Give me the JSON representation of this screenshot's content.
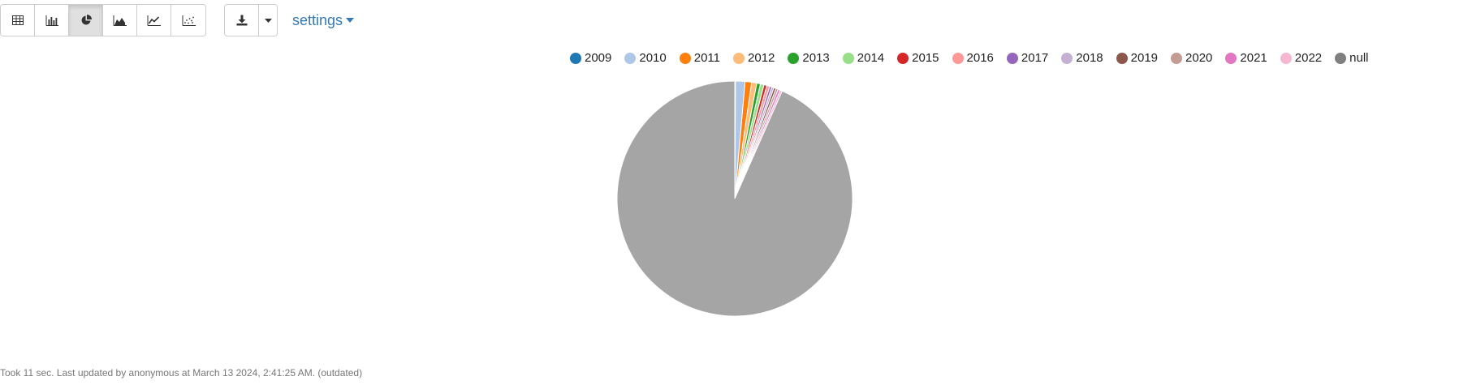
{
  "toolbar": {
    "view_buttons": [
      {
        "name": "table-view-button",
        "icon": "table-icon"
      },
      {
        "name": "bar-chart-button",
        "icon": "bar-chart-icon"
      },
      {
        "name": "pie-chart-button",
        "icon": "pie-chart-icon",
        "active": true
      },
      {
        "name": "area-chart-button",
        "icon": "area-chart-icon"
      },
      {
        "name": "line-chart-button",
        "icon": "line-chart-icon"
      },
      {
        "name": "scatter-chart-button",
        "icon": "scatter-chart-icon"
      }
    ],
    "export_icon": "download-icon",
    "settings_label": "settings"
  },
  "chart_data": {
    "type": "pie",
    "title": "",
    "legend_position": "top-right",
    "slices": [
      {
        "label": "2009",
        "value": 0.1,
        "color": "#1f77b4"
      },
      {
        "label": "2010",
        "value": 1.3,
        "color": "#aec7e8"
      },
      {
        "label": "2011",
        "value": 0.9,
        "color": "#ff7f0e"
      },
      {
        "label": "2012",
        "value": 0.7,
        "color": "#ffbb78"
      },
      {
        "label": "2013",
        "value": 0.5,
        "color": "#2ca02c"
      },
      {
        "label": "2014",
        "value": 0.5,
        "color": "#98df8a"
      },
      {
        "label": "2015",
        "value": 0.4,
        "color": "#d62728"
      },
      {
        "label": "2016",
        "value": 0.4,
        "color": "#ff9896"
      },
      {
        "label": "2017",
        "value": 0.3,
        "color": "#9467bd"
      },
      {
        "label": "2018",
        "value": 0.3,
        "color": "#c5b0d5"
      },
      {
        "label": "2019",
        "value": 0.3,
        "color": "#8c564b"
      },
      {
        "label": "2020",
        "value": 0.3,
        "color": "#c49c94"
      },
      {
        "label": "2021",
        "value": 0.3,
        "color": "#e377c2"
      },
      {
        "label": "2022",
        "value": 0.3,
        "color": "#f7b6d2"
      },
      {
        "label": "null",
        "value": 93.4,
        "color": "#a5a5a5"
      }
    ],
    "legend_colors": {
      "null": "#7f7f7f"
    }
  },
  "footer": {
    "status_text": "Took 11 sec. Last updated by anonymous at March 13 2024, 2:41:25 AM. (outdated)"
  }
}
